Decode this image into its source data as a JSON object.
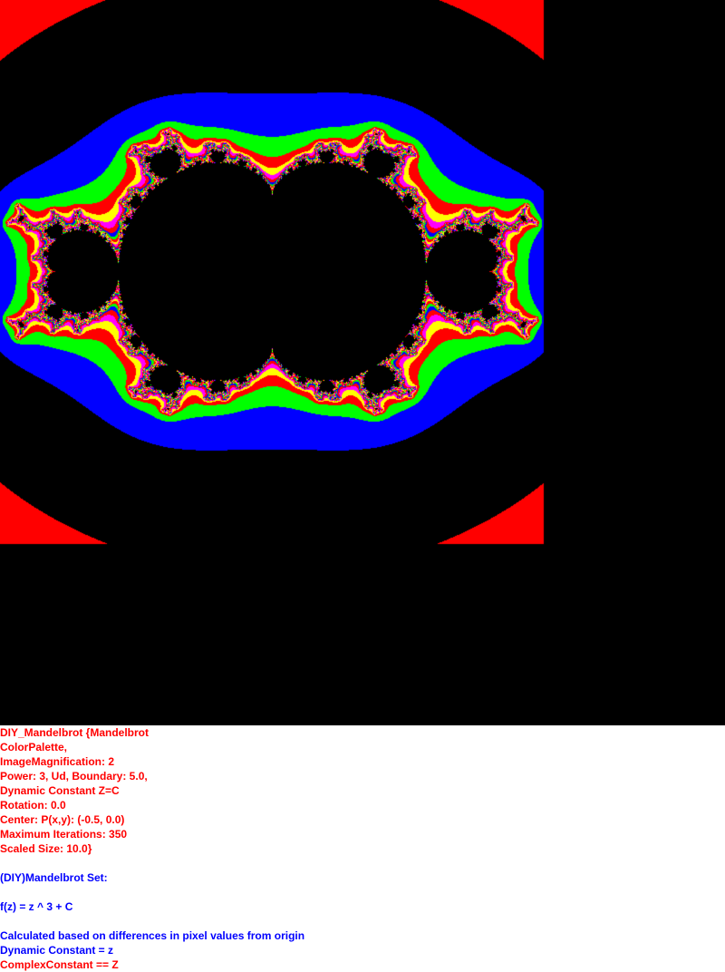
{
  "image": {
    "background": "#000000",
    "colors": {
      "outer_band": "#ff0000",
      "band_blue": "#0000ff",
      "band_green": "#00ff00",
      "band_red": "#ff0000",
      "band_yellow": "#ffff00",
      "band_magenta": "#ff00ff",
      "set_fill": "#000000"
    }
  },
  "params": {
    "color": "#ff0000",
    "lines": [
      "DIY_Mandelbrot {Mandelbrot",
      "ColorPalette,",
      "ImageMagnification: 2",
      "Power: 3, Ud, Boundary: 5.0,",
      "Dynamic Constant Z=C",
      "Rotation: 0.0",
      "Center: P(x,y): (-0.5, 0.0)",
      "Maximum Iterations: 350",
      "Scaled Size: 10.0}"
    ]
  },
  "description": {
    "color": "#0000ff",
    "title": "(DIY)Mandelbrot Set:",
    "formula": "f(z) = z ^ 3 + C",
    "calc_note": "Calculated based on differences in pixel values from origin",
    "dynamic_constant": "Dynamic Constant = z"
  },
  "complex_constant": {
    "color": "#ff0000",
    "text": "ComplexConstant == Z"
  }
}
